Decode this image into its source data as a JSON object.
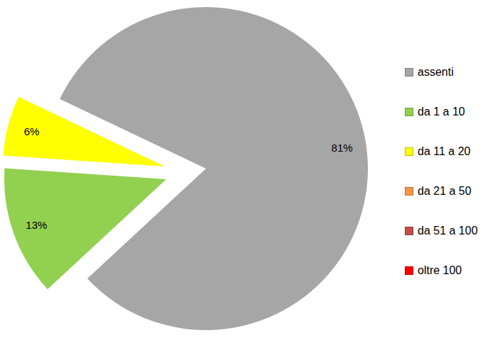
{
  "chart_data": {
    "type": "pie",
    "categories": [
      "assenti",
      "da 1 a 10",
      "da 11 a 20",
      "da 21 a 50",
      "da 51 a 100",
      "oltre 100"
    ],
    "values": [
      81,
      13,
      6,
      0,
      0,
      0
    ],
    "colors": [
      "#a6a6a6",
      "#92d050",
      "#ffff00",
      "#f79646",
      "#c0504d",
      "#ff0000"
    ],
    "value_labels": [
      "81%",
      "13%",
      "6%",
      null,
      null,
      null
    ],
    "data_labels": true,
    "legend": "right"
  }
}
